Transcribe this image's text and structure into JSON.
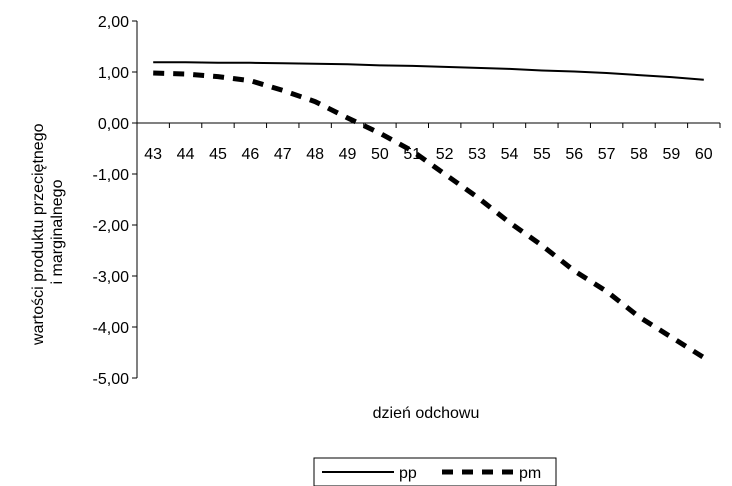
{
  "chart_data": {
    "type": "line",
    "title": "",
    "xlabel": "dzień odchowu",
    "ylabel_lines": [
      "wartości produktu przeciętnego",
      "i marginalnego"
    ],
    "x": [
      43,
      44,
      45,
      46,
      47,
      48,
      49,
      50,
      51,
      52,
      53,
      54,
      55,
      56,
      57,
      58,
      59,
      60
    ],
    "y_ticks": [
      "2,00",
      "1,00",
      "0,00",
      "-1,00",
      "-2,00",
      "-3,00",
      "-4,00",
      "-5,00"
    ],
    "ylim": [
      -5,
      2
    ],
    "grid": false,
    "legend_position": "bottom",
    "series": [
      {
        "name": "pp",
        "style": "solid",
        "color": "#000000",
        "values": [
          1.19,
          1.19,
          1.18,
          1.18,
          1.17,
          1.16,
          1.15,
          1.13,
          1.12,
          1.1,
          1.08,
          1.06,
          1.03,
          1.01,
          0.98,
          0.94,
          0.9,
          0.85
        ]
      },
      {
        "name": "pm",
        "style": "dashed",
        "color": "#000000",
        "values": [
          0.98,
          0.96,
          0.91,
          0.83,
          0.64,
          0.42,
          0.1,
          -0.2,
          -0.55,
          -1.0,
          -1.45,
          -1.95,
          -2.4,
          -2.9,
          -3.3,
          -3.8,
          -4.2,
          -4.6
        ]
      }
    ]
  }
}
